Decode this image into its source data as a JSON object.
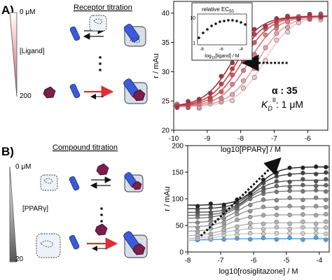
{
  "panelA": {
    "letter": "A)",
    "title": "Receptor titration",
    "gradient_top": "0 μM",
    "gradient_label": "[Ligand]",
    "gradient_bottom": "200",
    "gradient_color": "#d9535f",
    "alpha_text": "α : 35",
    "kd_text": "K",
    "kd_sub": "D",
    "kd_sup": "II",
    "kd_value": ": 1 μM",
    "inset": {
      "title": "relative EC",
      "title_sub": "50",
      "xlabel": "log",
      "xlabel_sub": "10",
      "xlabel_rest": "[ligand] / M",
      "yticks": [
        "1",
        "10"
      ],
      "xticks": [
        "-8",
        "-6",
        "-4"
      ]
    }
  },
  "panelB": {
    "letter": "B)",
    "title": "Compound titration",
    "gradient_top": "0 μM",
    "gradient_label": "[PPARγ]",
    "gradient_bottom": "20",
    "gradient_color": "#666666"
  },
  "chart_data": [
    {
      "type": "line",
      "xlabel": "log10[PPARγ] / M",
      "ylabel": "r / mAu",
      "xlim": [
        -10,
        -5.4
      ],
      "ylim": [
        20,
        42
      ],
      "xticks": [
        "-10",
        "-9",
        "-8",
        "-7",
        "-6"
      ],
      "yticks": [
        "20",
        "25",
        "30",
        "35",
        "40"
      ],
      "series_colors": [
        "#f2c9cc",
        "#e9a1a8",
        "#e07a84",
        "#d9535f",
        "#c83a48",
        "#a83040"
      ],
      "ec50": [
        -7.3,
        -7.5,
        -7.75,
        -7.95,
        -8.1,
        -8.25
      ],
      "bottom": 24,
      "top": 39.5
    },
    {
      "type": "line",
      "xlabel": "log10[rosiglitazone] / M",
      "ylabel": "r / mAu",
      "xlim": [
        -8,
        -3.7
      ],
      "ylim": [
        0,
        200
      ],
      "xticks": [
        "-8",
        "-7",
        "-6",
        "-5",
        "-4"
      ],
      "yticks": [
        "0",
        "50",
        "100",
        "150",
        "200"
      ],
      "x": [
        -7.7,
        -7.3,
        -6.9,
        -6.5,
        -6.1,
        -5.7,
        -5.3,
        -4.9,
        -4.5,
        -4.1,
        -3.8
      ],
      "series_levels": [
        25,
        35,
        45,
        55,
        70,
        85,
        100,
        115,
        125,
        135,
        148,
        160
      ],
      "series_colors": [
        "#4fa3e0",
        "#cfcfcf",
        "#c2c2c2",
        "#b5b5b5",
        "#a6a6a6",
        "#989898",
        "#888888",
        "#777777",
        "#666666",
        "#555555",
        "#444444",
        "#222222"
      ]
    }
  ]
}
